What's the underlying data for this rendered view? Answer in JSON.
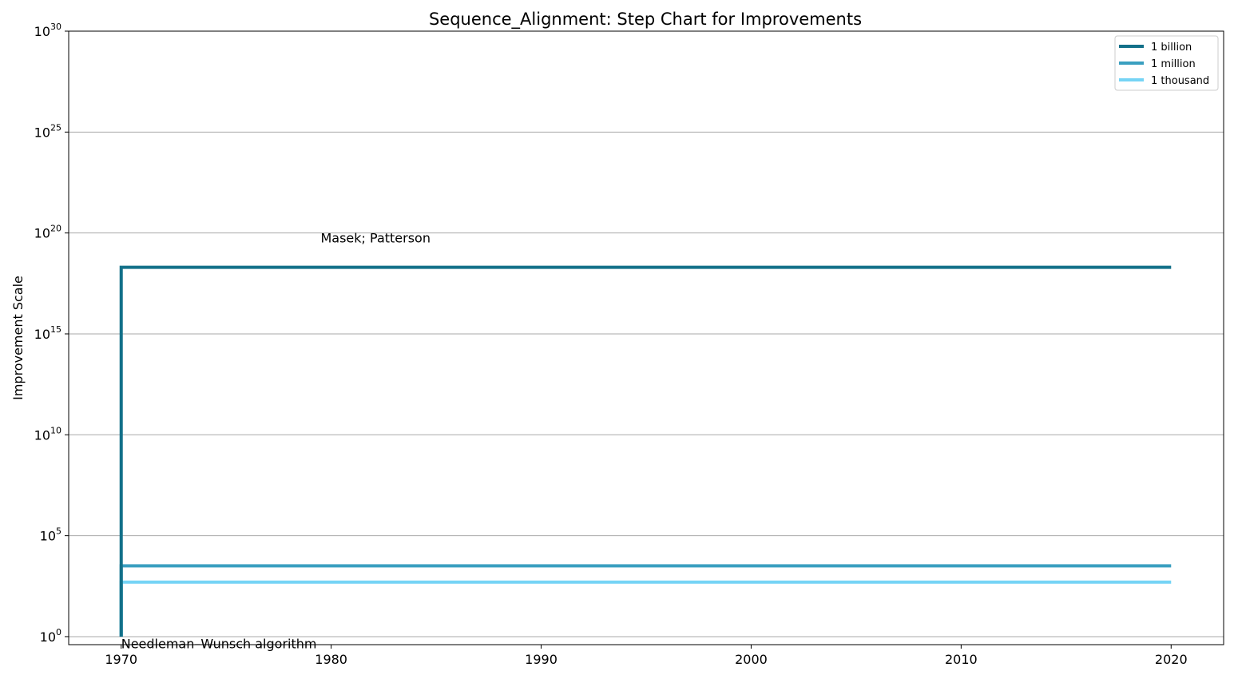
{
  "chart_data": {
    "type": "line",
    "subtype": "step",
    "title": "Sequence_Alignment: Step Chart for Improvements",
    "xlabel": "",
    "ylabel": "Improvement Scale",
    "yscale": "log",
    "xlim": [
      1967.5,
      2022.5
    ],
    "ylim": [
      0.4,
      1e+30
    ],
    "x_ticks": [
      1970,
      1980,
      1990,
      2000,
      2010,
      2020
    ],
    "y_ticks": [
      {
        "value": 1,
        "base": "10",
        "exp": "0"
      },
      {
        "value": 100000.0,
        "base": "10",
        "exp": "5"
      },
      {
        "value": 10000000000.0,
        "base": "10",
        "exp": "10"
      },
      {
        "value": 1000000000000000.0,
        "base": "10",
        "exp": "15"
      },
      {
        "value": 1e+20,
        "base": "10",
        "exp": "20"
      },
      {
        "value": 1e+25,
        "base": "10",
        "exp": "25"
      },
      {
        "value": 1e+30,
        "base": "10",
        "exp": "30"
      }
    ],
    "grid": "horizontal",
    "legend_position": "top-right",
    "series": [
      {
        "name": "1 billion",
        "color": "#137089",
        "x": [
          1970,
          1970,
          2020
        ],
        "y": [
          1,
          2e+18,
          2e+18
        ]
      },
      {
        "name": "1 million",
        "color": "#3a9fc0",
        "x": [
          1970,
          1970,
          2020
        ],
        "y": [
          1,
          3200.0,
          3200.0
        ]
      },
      {
        "name": "1 thousand",
        "color": "#76d4f5",
        "x": [
          1970,
          1970,
          2020
        ],
        "y": [
          1,
          500,
          500
        ]
      }
    ],
    "annotations": [
      {
        "text": "Masek; Patterson",
        "x": 1979.5,
        "y": 6e+19
      },
      {
        "text": "Needleman–Wunsch algorithm",
        "x": 1970,
        "y": 0.45
      }
    ]
  }
}
